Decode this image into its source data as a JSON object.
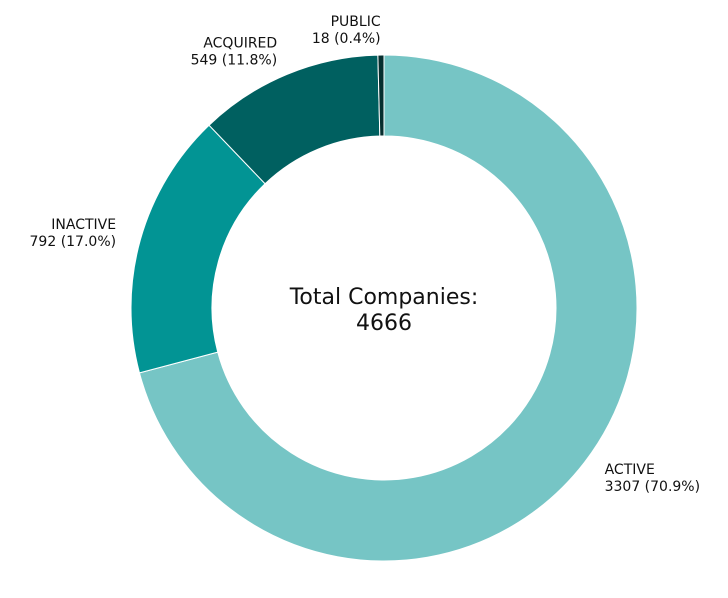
{
  "chart_data": {
    "type": "pie",
    "style": "donut",
    "center_label": {
      "title": "Total Companies:",
      "value": "4666"
    },
    "total": 4666,
    "slices": [
      {
        "name": "ACTIVE",
        "value": 3307,
        "percent": 70.9,
        "label": "3307 (70.9%)",
        "color": "#76c5c5"
      },
      {
        "name": "INACTIVE",
        "value": 792,
        "percent": 17.0,
        "label": "792 (17.0%)",
        "color": "#029494"
      },
      {
        "name": "ACQUIRED",
        "value": 549,
        "percent": 11.8,
        "label": "549 (11.8%)",
        "color": "#006060"
      },
      {
        "name": "PUBLIC",
        "value": 18,
        "percent": 0.4,
        "label": "18 (0.4%)",
        "color": "#062e2e"
      }
    ]
  }
}
